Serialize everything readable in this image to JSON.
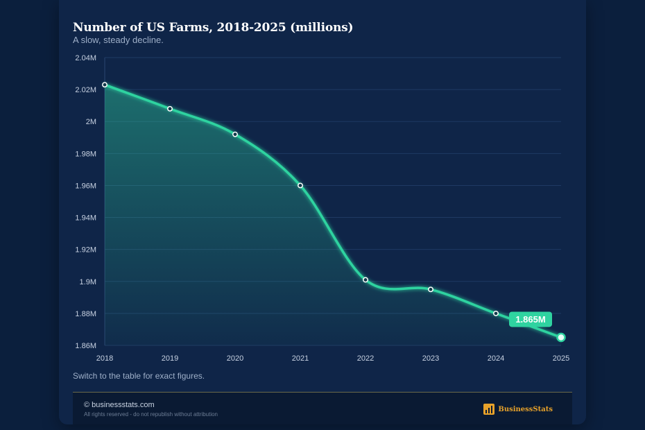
{
  "header": {
    "title": "Number of US Farms, 2018-2025 (millions)",
    "subtitle": "A slow, steady decline."
  },
  "note": "Switch to the table for exact figures.",
  "footer": {
    "copyright": "© businessstats.com",
    "rights": "All rights reserved - do not republish without attribution",
    "brand": "BusinessStats"
  },
  "colors": {
    "background": "#0b1f3d",
    "card": "#0f2548",
    "line": "#2fd3a0",
    "label_bg": "#2fd3a0",
    "brand": "#e8a22a"
  },
  "chart_data": {
    "type": "area",
    "title": "Number of US Farms, 2018-2025 (millions)",
    "subtitle": "A slow, steady decline.",
    "x": [
      "2018",
      "2019",
      "2020",
      "2021",
      "2022",
      "2023",
      "2024",
      "2025"
    ],
    "series": [
      {
        "values": [
          2.023,
          2.008,
          1.992,
          1.96,
          1.901,
          1.895,
          1.88,
          1.865
        ]
      }
    ],
    "ylim": [
      1.86,
      2.04
    ],
    "yticks": [
      1.86,
      1.88,
      1.9,
      1.92,
      1.94,
      1.96,
      1.98,
      2.0,
      2.02,
      2.04
    ],
    "ytick_labels": [
      "1.86M",
      "1.88M",
      "1.9M",
      "1.92M",
      "1.94M",
      "1.96M",
      "1.98M",
      "2M",
      "2.02M",
      "2.04M"
    ],
    "grid": true,
    "callout": {
      "x": "2025",
      "label": "1.865M"
    }
  }
}
